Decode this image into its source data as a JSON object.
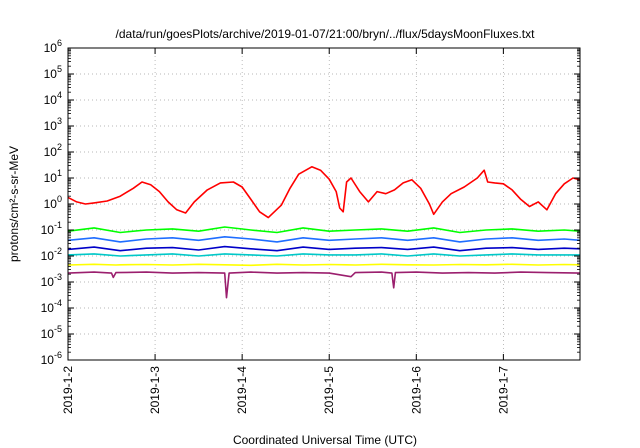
{
  "chart_data": {
    "type": "line",
    "title": "/data/run/goesPlots/archive/2019-01-07/21:00/bryn/../flux/5daysMoonFluxes.txt",
    "xlabel": "Coordinated Universal Time (UTC)",
    "ylabel": "protons/cm²-s-sr-MeV",
    "y_scale": "log",
    "grid": true,
    "legend": "none",
    "xlim": [
      0,
      5.88
    ],
    "ylim_exp": [
      -6,
      6
    ],
    "x_ticks": [
      {
        "x": 0,
        "label": "2019-1-2"
      },
      {
        "x": 1,
        "label": "2019-1-3"
      },
      {
        "x": 2,
        "label": "2019-1-4"
      },
      {
        "x": 3,
        "label": "2019-1-5"
      },
      {
        "x": 4,
        "label": "2019-1-6"
      },
      {
        "x": 5,
        "label": "2019-1-7"
      }
    ],
    "y_ticks": [
      {
        "exp": -6,
        "base": "10",
        "sup": "-6"
      },
      {
        "exp": -5,
        "base": "10",
        "sup": "-5"
      },
      {
        "exp": -4,
        "base": "10",
        "sup": "-4"
      },
      {
        "exp": -3,
        "base": "10",
        "sup": "-3"
      },
      {
        "exp": -2,
        "base": "10",
        "sup": "-2"
      },
      {
        "exp": -1,
        "base": "10",
        "sup": "-1"
      },
      {
        "exp": 0,
        "base": "10",
        "sup": "0"
      },
      {
        "exp": 1,
        "base": "10",
        "sup": "1"
      },
      {
        "exp": 2,
        "base": "10",
        "sup": "2"
      },
      {
        "exp": 3,
        "base": "10",
        "sup": "3"
      },
      {
        "exp": 4,
        "base": "10",
        "sup": "4"
      },
      {
        "exp": 5,
        "base": "10",
        "sup": "5"
      },
      {
        "exp": 6,
        "base": "10",
        "sup": "6"
      }
    ],
    "series": [
      {
        "color": "#ff0000",
        "x": [
          0,
          0.1,
          0.2,
          0.3,
          0.45,
          0.6,
          0.75,
          0.85,
          0.95,
          1.05,
          1.15,
          1.25,
          1.35,
          1.45,
          1.6,
          1.75,
          1.9,
          2.0,
          2.1,
          2.2,
          2.3,
          2.45,
          2.55,
          2.65,
          2.8,
          2.9,
          3.0,
          3.08,
          3.12,
          3.16,
          3.2,
          3.25,
          3.35,
          3.45,
          3.55,
          3.65,
          3.75,
          3.85,
          3.95,
          4.05,
          4.15,
          4.2,
          4.3,
          4.4,
          4.55,
          4.7,
          4.78,
          4.82,
          4.9,
          5.0,
          5.1,
          5.2,
          5.3,
          5.4,
          5.5,
          5.6,
          5.7,
          5.8,
          5.88
        ],
        "y": [
          1.8,
          1.2,
          1.0,
          1.1,
          1.3,
          2.0,
          4.0,
          7.0,
          5.5,
          3.0,
          1.2,
          0.6,
          0.45,
          1.2,
          3.5,
          6.5,
          7.0,
          4.5,
          1.5,
          0.5,
          0.3,
          0.9,
          4.0,
          14,
          27,
          20,
          9,
          3.0,
          0.7,
          0.5,
          7,
          10,
          3.0,
          1.2,
          3.0,
          2.5,
          3.5,
          6.5,
          8.5,
          4.0,
          1.0,
          0.4,
          1.2,
          2.5,
          4.5,
          10,
          20,
          7,
          6.5,
          6.0,
          3.5,
          1.5,
          0.8,
          1.2,
          0.6,
          2.5,
          6.0,
          10,
          8.5
        ]
      },
      {
        "color": "#00ff00",
        "x": [
          0,
          0.3,
          0.6,
          0.9,
          1.2,
          1.5,
          1.8,
          2.1,
          2.4,
          2.7,
          3.0,
          3.3,
          3.6,
          3.9,
          4.2,
          4.5,
          4.8,
          5.1,
          5.4,
          5.7,
          5.88
        ],
        "y": [
          0.09,
          0.12,
          0.08,
          0.1,
          0.11,
          0.09,
          0.13,
          0.1,
          0.08,
          0.12,
          0.09,
          0.1,
          0.11,
          0.09,
          0.12,
          0.08,
          0.1,
          0.11,
          0.09,
          0.1,
          0.09
        ]
      },
      {
        "color": "#1f6dff",
        "x": [
          0,
          0.3,
          0.6,
          0.9,
          1.2,
          1.5,
          1.8,
          2.1,
          2.4,
          2.7,
          3.0,
          3.3,
          3.6,
          3.9,
          4.2,
          4.5,
          4.8,
          5.1,
          5.4,
          5.7,
          5.88
        ],
        "y": [
          0.04,
          0.05,
          0.035,
          0.045,
          0.05,
          0.04,
          0.055,
          0.045,
          0.035,
          0.05,
          0.04,
          0.045,
          0.05,
          0.04,
          0.05,
          0.035,
          0.045,
          0.05,
          0.04,
          0.045,
          0.04
        ]
      },
      {
        "color": "#0000c8",
        "x": [
          0,
          0.3,
          0.6,
          0.9,
          1.2,
          1.5,
          1.8,
          2.1,
          2.4,
          2.7,
          3.0,
          3.3,
          3.6,
          3.9,
          4.2,
          4.5,
          4.8,
          5.1,
          5.4,
          5.7,
          5.88
        ],
        "y": [
          0.018,
          0.022,
          0.016,
          0.02,
          0.021,
          0.017,
          0.023,
          0.019,
          0.016,
          0.022,
          0.018,
          0.02,
          0.021,
          0.018,
          0.022,
          0.016,
          0.02,
          0.021,
          0.018,
          0.02,
          0.019
        ]
      },
      {
        "color": "#00c8c8",
        "x": [
          0,
          0.3,
          0.6,
          0.9,
          1.2,
          1.5,
          1.8,
          2.1,
          2.4,
          2.7,
          3.0,
          3.3,
          3.6,
          3.9,
          4.2,
          4.5,
          4.8,
          5.1,
          5.4,
          5.7,
          5.88
        ],
        "y": [
          0.011,
          0.012,
          0.01,
          0.011,
          0.012,
          0.01,
          0.012,
          0.011,
          0.01,
          0.012,
          0.011,
          0.011,
          0.012,
          0.01,
          0.012,
          0.01,
          0.011,
          0.012,
          0.011,
          0.011,
          0.011
        ]
      },
      {
        "color": "#ffff00",
        "x": [
          0,
          0.3,
          0.55,
          0.6,
          0.9,
          1.2,
          1.5,
          1.8,
          2.1,
          2.4,
          2.7,
          3.0,
          3.2,
          3.3,
          3.6,
          3.9,
          4.2,
          4.5,
          4.8,
          5.1,
          5.4,
          5.7,
          5.88
        ],
        "y": [
          0.0045,
          0.0048,
          0.0045,
          0.0046,
          0.0047,
          0.0045,
          0.0048,
          0.0046,
          0.0044,
          0.0048,
          0.0045,
          0.0047,
          0.0046,
          0.0045,
          0.0048,
          0.0046,
          0.0045,
          0.0047,
          0.0046,
          0.0048,
          0.0045,
          0.0047,
          0.0046
        ]
      },
      {
        "color": "#9b1f6e",
        "x": [
          0,
          0.3,
          0.5,
          0.52,
          0.55,
          0.9,
          1.2,
          1.5,
          1.8,
          1.82,
          1.85,
          2.1,
          2.4,
          2.7,
          3.0,
          3.25,
          3.3,
          3.6,
          3.72,
          3.74,
          3.76,
          4.0,
          4.3,
          4.6,
          4.9,
          5.2,
          5.5,
          5.88
        ],
        "y": [
          0.0022,
          0.0024,
          0.0022,
          0.0015,
          0.0023,
          0.0024,
          0.0022,
          0.0023,
          0.0022,
          0.00025,
          0.0022,
          0.0024,
          0.0022,
          0.0023,
          0.0022,
          0.0016,
          0.0023,
          0.0024,
          0.0022,
          0.0006,
          0.0023,
          0.0024,
          0.0022,
          0.0023,
          0.0022,
          0.0024,
          0.0023,
          0.0022
        ]
      }
    ]
  }
}
